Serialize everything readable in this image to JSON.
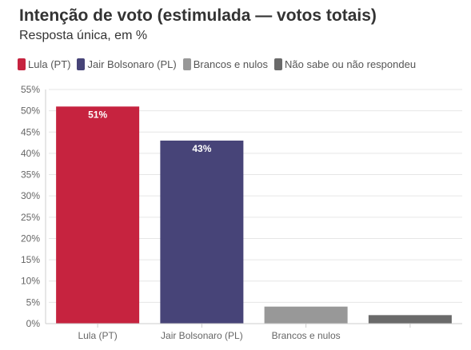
{
  "chart_data": {
    "type": "bar",
    "title": "Intenção de voto (estimulada — votos totais)",
    "subtitle": "Resposta única, em %",
    "categories": [
      "Lula (PT)",
      "Jair Bolsonaro (PL)",
      "Brancos e nulos",
      "Não sabe ou não respondeu"
    ],
    "values": [
      51,
      43,
      4,
      2
    ],
    "data_labels": [
      "51%",
      "43%",
      "",
      ""
    ],
    "colors": [
      "#c6233f",
      "#474478",
      "#989898",
      "#6a6a6a"
    ],
    "x_tick_labels": [
      "Lula (PT)",
      "Jair Bolsonaro (PL)",
      "Brancos e nulos",
      ""
    ],
    "ylim": [
      0,
      55
    ],
    "y_ticks": [
      0,
      5,
      10,
      15,
      20,
      25,
      30,
      35,
      40,
      45,
      50,
      55
    ],
    "y_tick_labels": [
      "0%",
      "5%",
      "10%",
      "15%",
      "20%",
      "25%",
      "30%",
      "35%",
      "40%",
      "45%",
      "50%",
      "55%"
    ],
    "xlabel": "",
    "ylabel": "",
    "grid": true,
    "legend_position": "top"
  }
}
